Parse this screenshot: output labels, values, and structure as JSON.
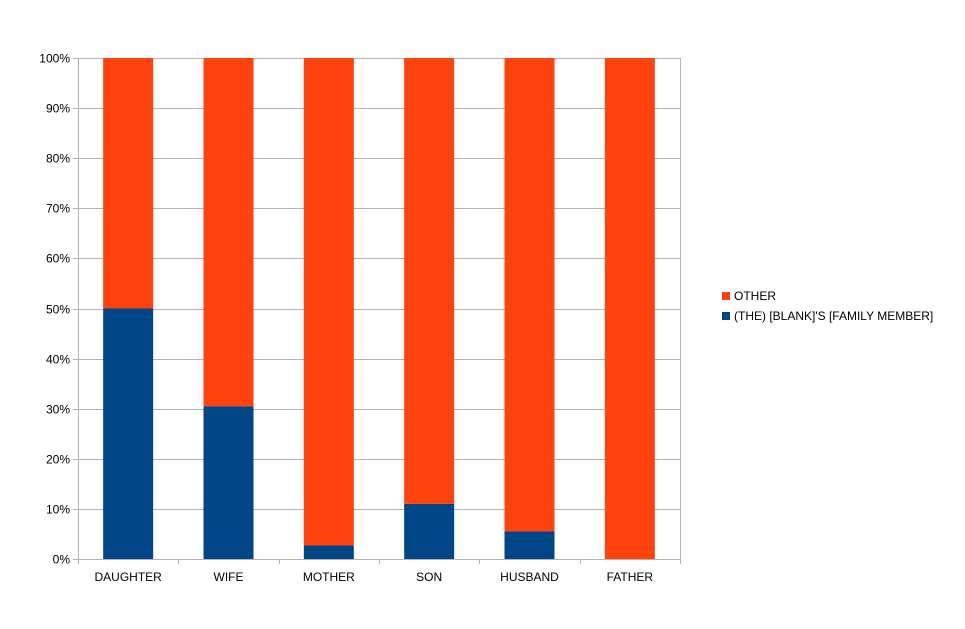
{
  "chart_data": {
    "type": "bar",
    "stacked": true,
    "percent": true,
    "categories": [
      "DAUGHTER",
      "WIFE",
      "MOTHER",
      "SON",
      "HUSBAND",
      "FATHER"
    ],
    "series": [
      {
        "name": "(THE) [BLANK]'S [FAMILY MEMBER]",
        "color": "#004586",
        "values": [
          50,
          30.5,
          2.7,
          11,
          5.5,
          0
        ]
      },
      {
        "name": "OTHER",
        "color": "#ff420e",
        "values": [
          50,
          69.5,
          97.3,
          89,
          94.5,
          100
        ]
      }
    ],
    "yticks": [
      "0%",
      "10%",
      "20%",
      "30%",
      "40%",
      "50%",
      "60%",
      "70%",
      "80%",
      "90%",
      "100%"
    ],
    "ylim": [
      0,
      100
    ],
    "grid": true,
    "legend": [
      {
        "name": "OTHER",
        "color": "#ff420e"
      },
      {
        "name": "(THE) [BLANK]'S [FAMILY MEMBER]",
        "color": "#004586"
      }
    ],
    "legend_position": "right"
  }
}
